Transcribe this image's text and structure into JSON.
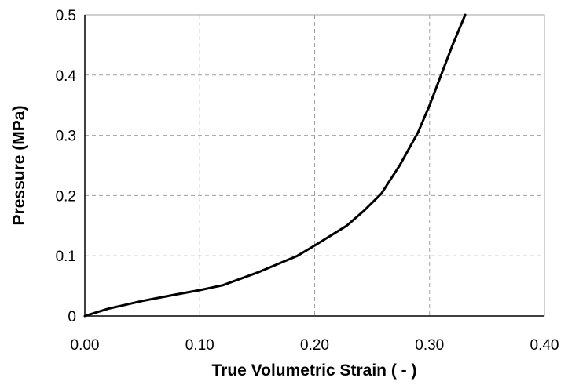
{
  "chart_data": {
    "type": "line",
    "title": "",
    "xlabel": "True Volumetric Strain ( - )",
    "ylabel": "Pressure (MPa)",
    "xlim": [
      0.0,
      0.4
    ],
    "ylim": [
      0.0,
      0.5
    ],
    "x_ticks": [
      "0.00",
      "0.10",
      "0.20",
      "0.30",
      "0.40"
    ],
    "y_ticks": [
      "0",
      "0.1",
      "0.2",
      "0.3",
      "0.4",
      "0.5"
    ],
    "grid": true,
    "series": [
      {
        "color": "#000000",
        "x": [
          0.0,
          0.02,
          0.05,
          0.08,
          0.1,
          0.12,
          0.15,
          0.185,
          0.2,
          0.228,
          0.243,
          0.258,
          0.274,
          0.29,
          0.3,
          0.31,
          0.32,
          0.331
        ],
        "y": [
          0.0,
          0.012,
          0.025,
          0.036,
          0.043,
          0.051,
          0.072,
          0.1,
          0.117,
          0.15,
          0.175,
          0.203,
          0.25,
          0.305,
          0.35,
          0.4,
          0.45,
          0.5
        ]
      }
    ]
  }
}
